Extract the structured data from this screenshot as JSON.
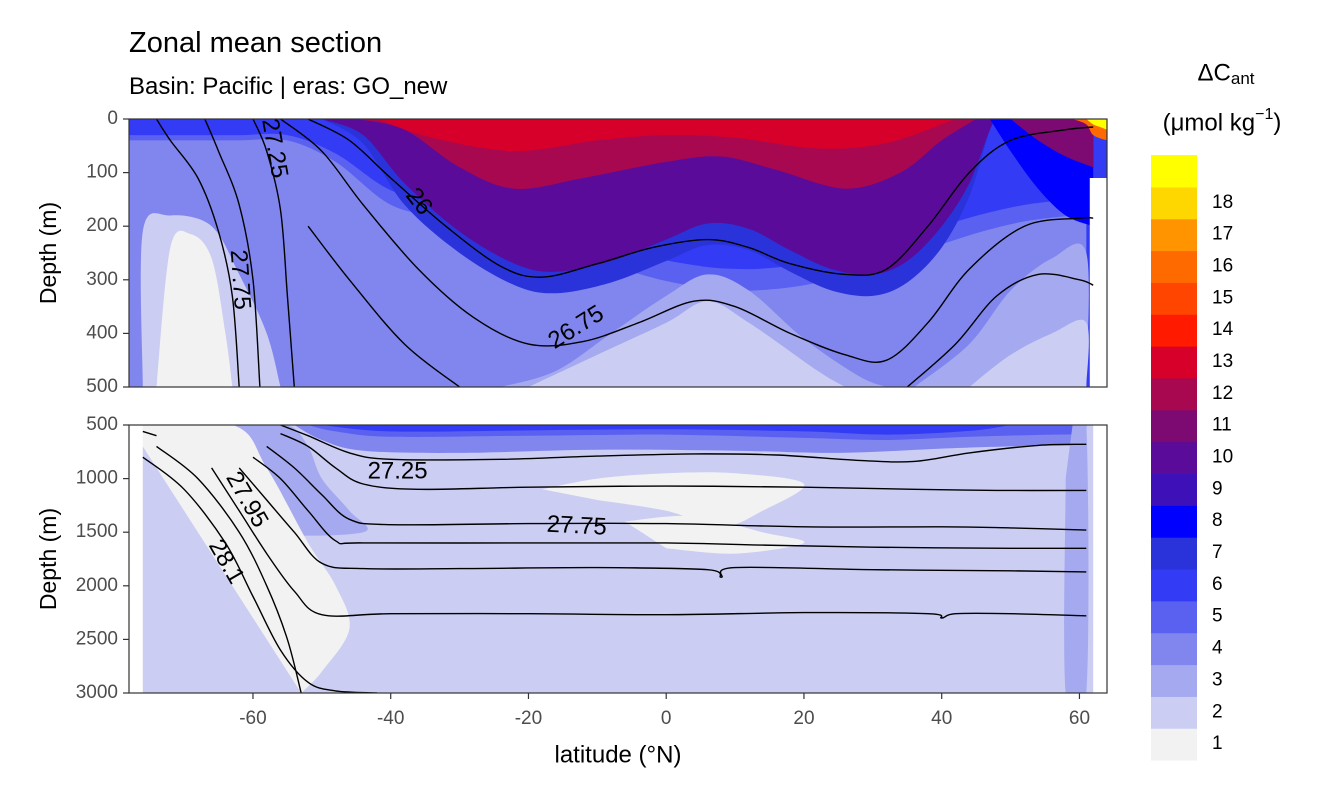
{
  "title": "Zonal mean section",
  "subtitle": "Basin: Pacific | eras: GO_new",
  "chart_data": {
    "type": "heatmap",
    "xlabel": "latitude (°N)",
    "xlim": [
      -78,
      64
    ],
    "x_ticks": [
      -60,
      -40,
      -20,
      0,
      20,
      40,
      60
    ],
    "panels": [
      {
        "name": "upper",
        "ylabel": "Depth (m)",
        "ylim": [
          0,
          500
        ],
        "y_ticks": [
          0,
          100,
          200,
          300,
          400,
          500
        ]
      },
      {
        "name": "lower",
        "ylabel": "Depth (m)",
        "ylim": [
          500,
          3000
        ],
        "y_ticks": [
          500,
          1000,
          1500,
          2000,
          2500,
          3000
        ]
      }
    ],
    "contour_labels": [
      {
        "text": "27.25",
        "x": -57,
        "y": 55,
        "panel": 0,
        "angle": 80
      },
      {
        "text": "26",
        "x": -36,
        "y": 155,
        "panel": 0,
        "angle": 52
      },
      {
        "text": "27.75",
        "x": -62,
        "y": 300,
        "panel": 0,
        "angle": 86
      },
      {
        "text": "26.75",
        "x": -13,
        "y": 390,
        "panel": 0,
        "angle": -32
      },
      {
        "text": "27.25",
        "x": -39,
        "y": 940,
        "panel": 1,
        "angle": 0
      },
      {
        "text": "27.75",
        "x": -13,
        "y": 1450,
        "panel": 1,
        "angle": 3
      },
      {
        "text": "27.95",
        "x": -61,
        "y": 1200,
        "panel": 1,
        "angle": 60
      },
      {
        "text": "28.1",
        "x": -64,
        "y": 1780,
        "panel": 1,
        "angle": 60
      }
    ],
    "legend": {
      "title_main": "ΔC",
      "title_sub": "ant",
      "unit": "(μmol kg",
      "unit_sup": "−1",
      "unit_close": ")",
      "position": "right",
      "levels": [
        {
          "label": "1",
          "color": "#f2f2f2"
        },
        {
          "label": "2",
          "color": "#cbcdf2"
        },
        {
          "label": "3",
          "color": "#a5a9ef"
        },
        {
          "label": "4",
          "color": "#8086ee"
        },
        {
          "label": "5",
          "color": "#5a60f0"
        },
        {
          "label": "6",
          "color": "#333bf4"
        },
        {
          "label": "7",
          "color": "#2a33d9"
        },
        {
          "label": "8",
          "color": "#0000ff"
        },
        {
          "label": "9",
          "color": "#3e10b8"
        },
        {
          "label": "10",
          "color": "#5a0b9a"
        },
        {
          "label": "11",
          "color": "#7c0a72"
        },
        {
          "label": "12",
          "color": "#a8084f"
        },
        {
          "label": "13",
          "color": "#d6002a"
        },
        {
          "label": "14",
          "color": "#ff1a00"
        },
        {
          "label": "15",
          "color": "#ff4500"
        },
        {
          "label": "16",
          "color": "#ff6a00"
        },
        {
          "label": "17",
          "color": "#ff9300"
        },
        {
          "label": "18",
          "color": "#ffd700"
        },
        {
          "label": "",
          "color": "#ffff00"
        }
      ]
    }
  }
}
